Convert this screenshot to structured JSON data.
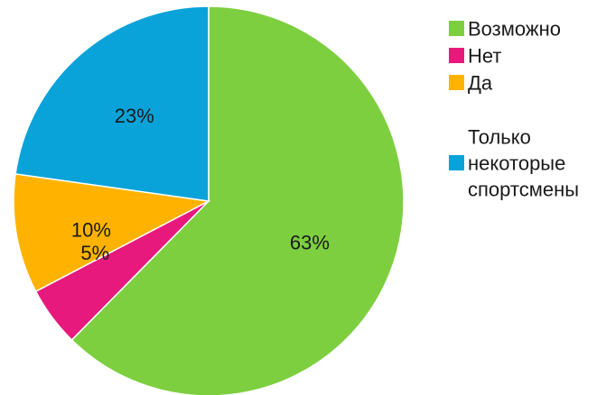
{
  "chart_data": {
    "type": "pie",
    "title": "",
    "slices": [
      {
        "label": "Возможно",
        "value": 63,
        "display": "63%",
        "color": "#7dcf3f"
      },
      {
        "label": "Нет",
        "value": 5,
        "display": "5%",
        "color": "#e8197c"
      },
      {
        "label": "Да",
        "value": 10,
        "display": "10%",
        "color": "#ffb300"
      },
      {
        "label": "Только некоторые спортсмены",
        "value": 23,
        "display": "23%",
        "color": "#0aa3d9"
      }
    ],
    "legend": {
      "placement": "right",
      "items": [
        {
          "lines": [
            "Возможно"
          ],
          "color": "#7dcf3f"
        },
        {
          "lines": [
            "Нет"
          ],
          "color": "#e8197c"
        },
        {
          "lines": [
            "Да"
          ],
          "color": "#ffb300"
        },
        {
          "lines": [
            "Только",
            "некоторые",
            "спортсмены"
          ],
          "color": "#0aa3d9"
        }
      ]
    },
    "start_angle_deg": 0,
    "direction": "clockwise"
  }
}
